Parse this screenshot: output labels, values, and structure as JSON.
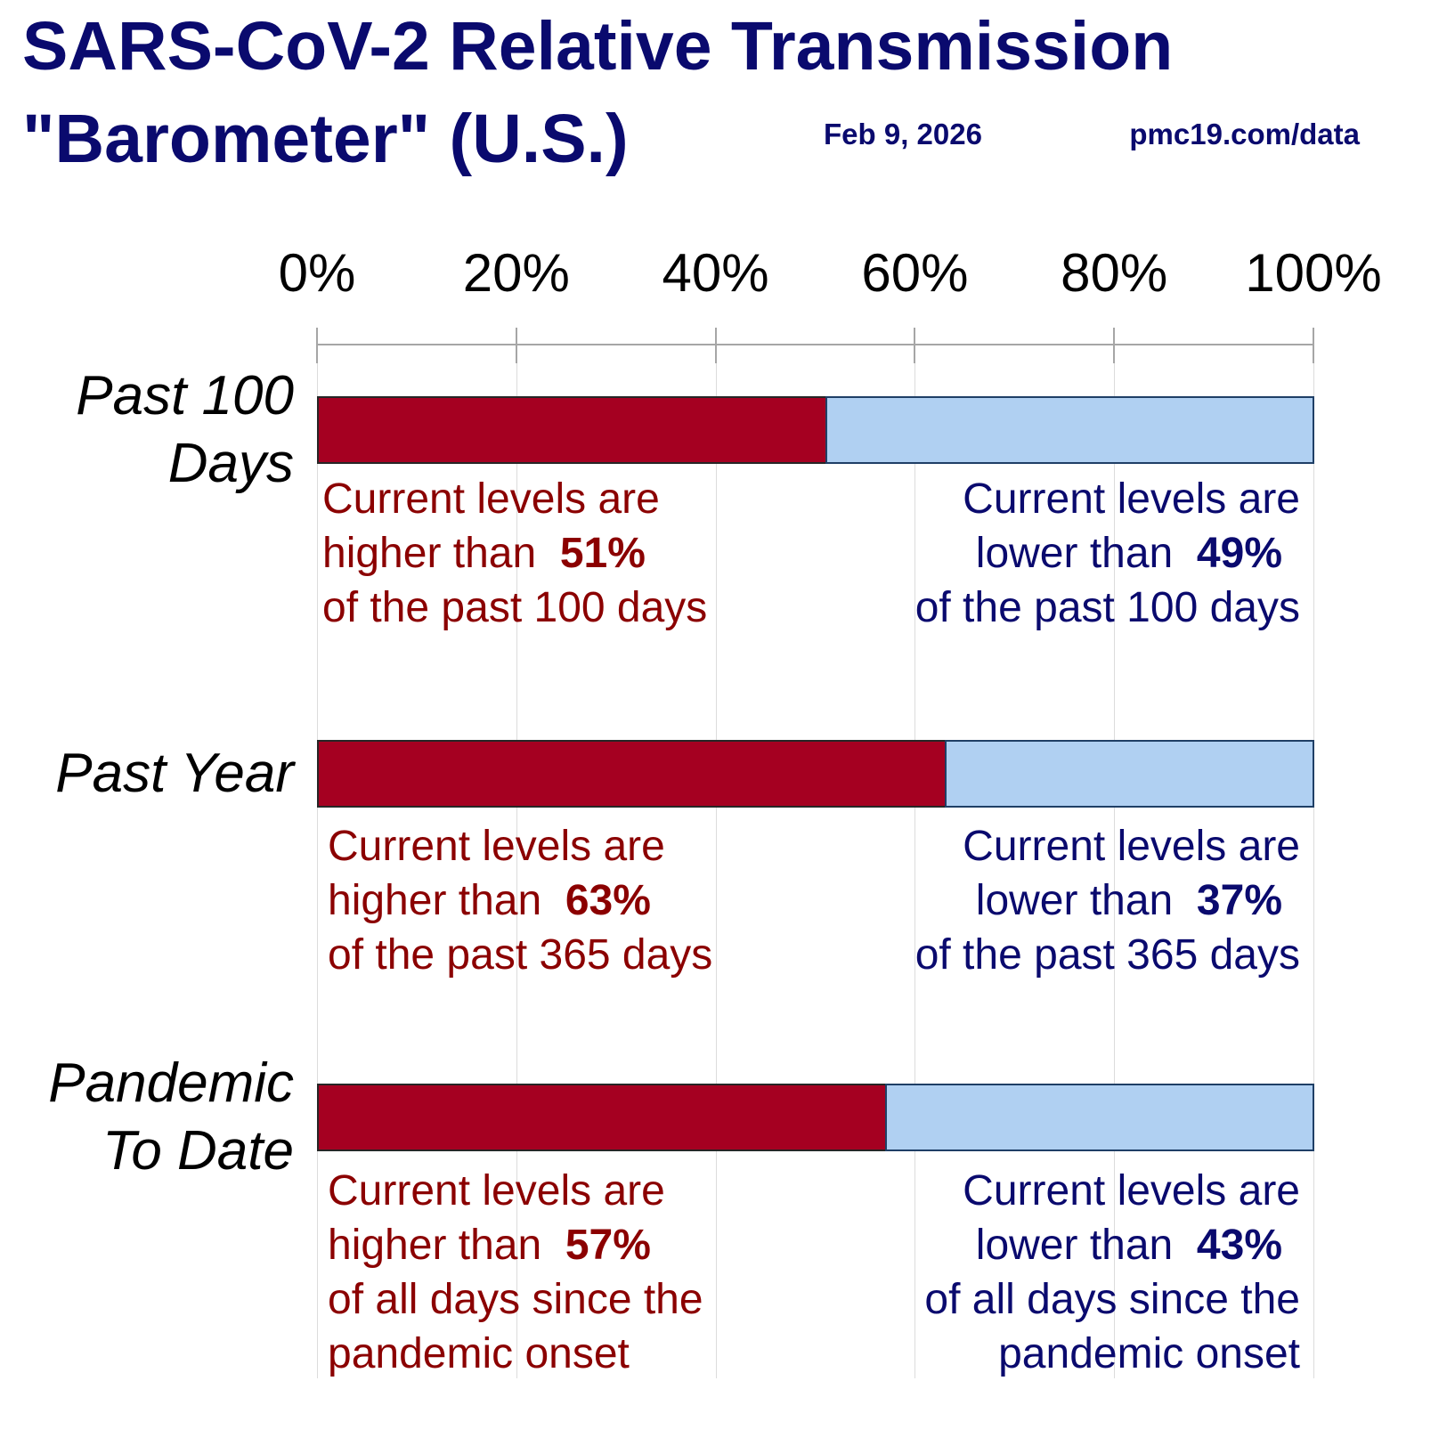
{
  "header": {
    "title_line1": "SARS-CoV-2 Relative Transmission",
    "title_line2": "\"Barometer\" (U.S.)",
    "date": "Feb 9, 2026",
    "source": "pmc19.com/data"
  },
  "colors": {
    "higher": "#a50021",
    "lower": "#b0d0f2",
    "title": "#0a0a6e",
    "higher_text": "#8b0000"
  },
  "chart_data": {
    "type": "bar",
    "orientation": "horizontal-stacked",
    "title": "SARS-CoV-2 Relative Transmission \"Barometer\" (U.S.)",
    "xlim": [
      0,
      100
    ],
    "x_ticks": [
      "0%",
      "20%",
      "40%",
      "60%",
      "80%",
      "100%"
    ],
    "categories": [
      "Past 100 Days",
      "Past Year",
      "Pandemic To Date"
    ],
    "category_lines": [
      [
        "Past 100",
        "Days"
      ],
      [
        "Past Year"
      ],
      [
        "Pandemic",
        "To Date"
      ]
    ],
    "series": [
      {
        "name": "higher",
        "values": [
          51,
          63,
          57
        ]
      },
      {
        "name": "lower",
        "values": [
          49,
          37,
          43
        ]
      }
    ],
    "annotations": [
      {
        "higher": {
          "l1": "Current levels are",
          "l2": "higher than  ",
          "pct": "51%",
          "rest": [
            "of the past 100 days"
          ]
        },
        "lower": {
          "l1": "Current levels are",
          "l2": "lower than  ",
          "pct": "49%",
          "rest": [
            "of the past 100 days"
          ]
        }
      },
      {
        "higher": {
          "l1": "Current levels are",
          "l2": "higher than  ",
          "pct": "63%",
          "rest": [
            "of the past 365 days"
          ]
        },
        "lower": {
          "l1": "Current levels are",
          "l2": "lower than  ",
          "pct": "37%",
          "rest": [
            "of the past 365 days"
          ]
        }
      },
      {
        "higher": {
          "l1": "Current levels are",
          "l2": "higher than  ",
          "pct": "57%",
          "rest": [
            "of all days since the",
            "pandemic onset"
          ]
        },
        "lower": {
          "l1": "Current levels are",
          "l2": "lower than  ",
          "pct": "43%",
          "rest": [
            "of all days since the",
            "pandemic onset"
          ]
        }
      }
    ]
  }
}
